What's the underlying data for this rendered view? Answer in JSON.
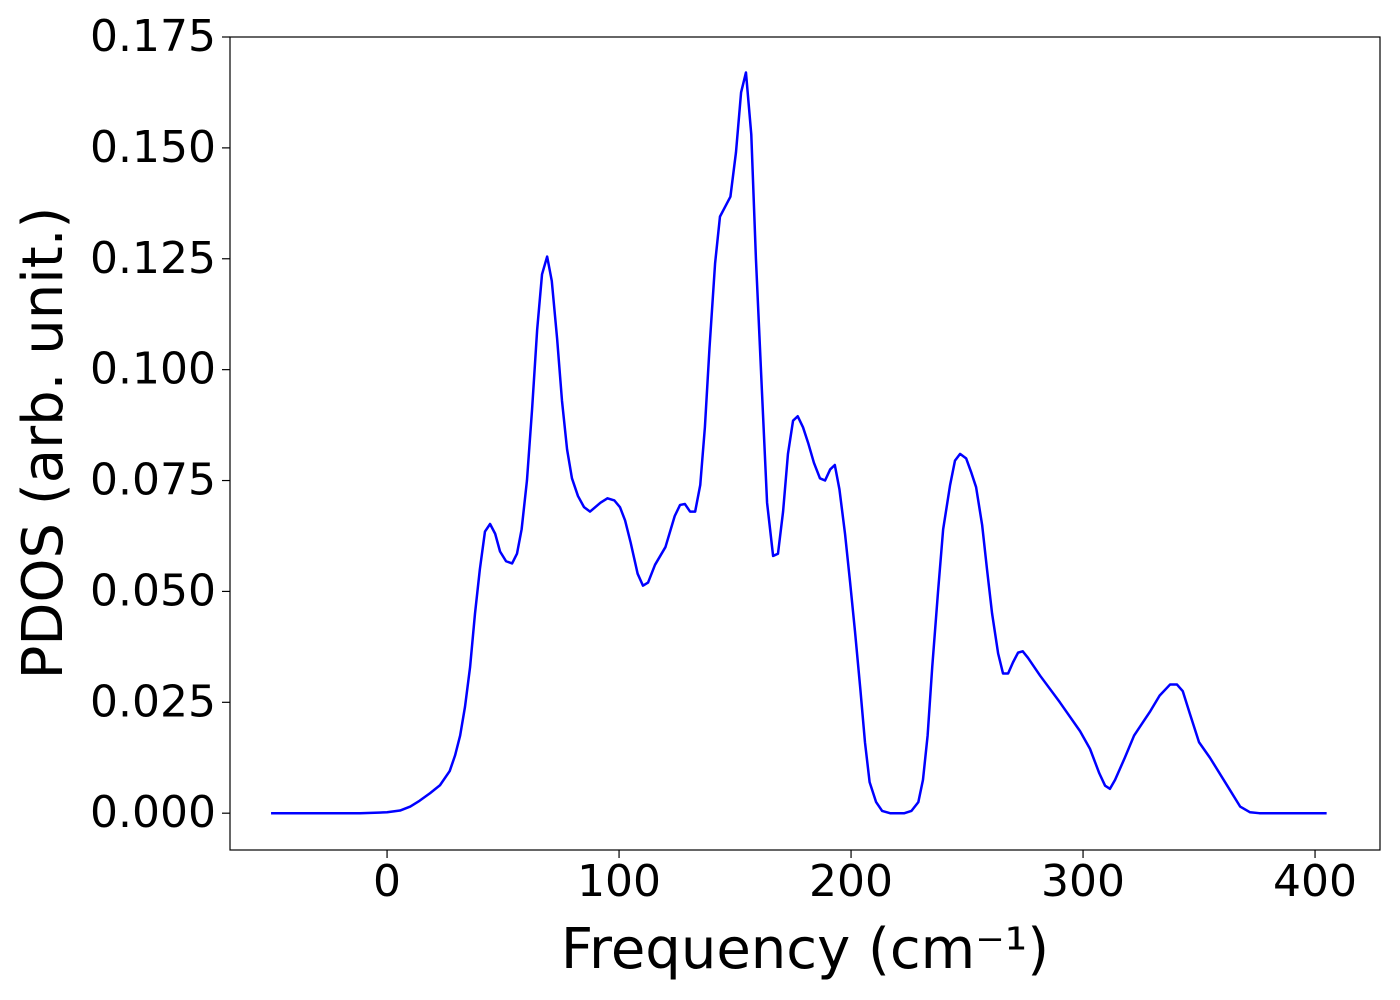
{
  "chart_data": {
    "type": "line",
    "x_label": "Frequency (cm⁻¹)",
    "y_label": "PDOS (arb. unit.)",
    "x": [
      -50,
      -11.6,
      0,
      5.6,
      10,
      14,
      18.5,
      22.8,
      27,
      29.3,
      31.5,
      33.6,
      35.8,
      37.9,
      40,
      42.2,
      44.4,
      46.6,
      48.7,
      51.3,
      53.9,
      56,
      58,
      60.3,
      62.5,
      64.7,
      66.8,
      69,
      71,
      73.3,
      75.4,
      77.6,
      79.7,
      82.3,
      84.9,
      87.5,
      92,
      95,
      98,
      100.4,
      102.6,
      105,
      108,
      110.3,
      112.5,
      115.5,
      120,
      124,
      126.3,
      128.4,
      130.6,
      132.8,
      135,
      137,
      139,
      141.4,
      143.5,
      146,
      148,
      150.4,
      152.6,
      154.7,
      157,
      159,
      161.6,
      163.8,
      166.4,
      168.5,
      170.7,
      172.8,
      175,
      177,
      179.3,
      181.5,
      184,
      186.6,
      188.8,
      191,
      193,
      195,
      197.4,
      199.6,
      201.7,
      204,
      206,
      208,
      210.8,
      213.4,
      216.8,
      223,
      226,
      229,
      231,
      233,
      235,
      237.5,
      239.7,
      242.7,
      244.8,
      247,
      249.6,
      251.7,
      253.9,
      256.5,
      258.6,
      260.8,
      263.4,
      265.5,
      267.7,
      269.8,
      272,
      274,
      276.3,
      281.5,
      290,
      298.7,
      303,
      307,
      309.5,
      311.6,
      313.8,
      318,
      322,
      329,
      333,
      337.5,
      340.5,
      343,
      346,
      350,
      354.7,
      363,
      367.7,
      372,
      376,
      405
    ],
    "series": [
      {
        "color": "#0000ff",
        "values": [
          0,
          0,
          0.0002,
          0.0006,
          0.0015,
          0.0028,
          0.0045,
          0.0063,
          0.0095,
          0.013,
          0.0175,
          0.024,
          0.033,
          0.045,
          0.055,
          0.0635,
          0.0652,
          0.063,
          0.059,
          0.0568,
          0.0563,
          0.0585,
          0.064,
          0.075,
          0.091,
          0.109,
          0.1215,
          0.1255,
          0.12,
          0.107,
          0.093,
          0.082,
          0.0755,
          0.0715,
          0.069,
          0.068,
          0.07,
          0.071,
          0.0705,
          0.069,
          0.066,
          0.061,
          0.054,
          0.0513,
          0.052,
          0.056,
          0.06,
          0.067,
          0.0695,
          0.0697,
          0.068,
          0.068,
          0.074,
          0.087,
          0.105,
          0.124,
          0.1345,
          0.137,
          0.139,
          0.149,
          0.1625,
          0.167,
          0.153,
          0.125,
          0.095,
          0.07,
          0.058,
          0.0585,
          0.068,
          0.081,
          0.0885,
          0.0895,
          0.087,
          0.0835,
          0.079,
          0.0755,
          0.075,
          0.0775,
          0.0785,
          0.073,
          0.063,
          0.052,
          0.041,
          0.028,
          0.016,
          0.007,
          0.0025,
          0.0005,
          0,
          0,
          0.0005,
          0.0025,
          0.0075,
          0.0175,
          0.033,
          0.05,
          0.064,
          0.074,
          0.0795,
          0.081,
          0.08,
          0.077,
          0.0735,
          0.065,
          0.055,
          0.045,
          0.036,
          0.0315,
          0.0315,
          0.034,
          0.0362,
          0.0365,
          0.035,
          0.031,
          0.025,
          0.0185,
          0.0145,
          0.009,
          0.0062,
          0.0055,
          0.0075,
          0.0125,
          0.0175,
          0.023,
          0.0265,
          0.029,
          0.029,
          0.0275,
          0.0225,
          0.016,
          0.0125,
          0.0055,
          0.0015,
          0.0002,
          0,
          0
        ]
      }
    ],
    "xlim": [
      -67.7,
      428
    ],
    "ylim": [
      -0.0083,
      0.175
    ],
    "xticks": [
      0,
      100,
      200,
      300,
      400
    ],
    "yticks": [
      {
        "value": 0,
        "label": "0.000"
      },
      0.025,
      {
        "value": 0.05,
        "label": "0.050"
      },
      0.075,
      {
        "value": 0.1,
        "label": "0.100"
      },
      0.125,
      {
        "value": 0.15,
        "label": "0.150"
      },
      0.175
    ],
    "grid": false
  }
}
